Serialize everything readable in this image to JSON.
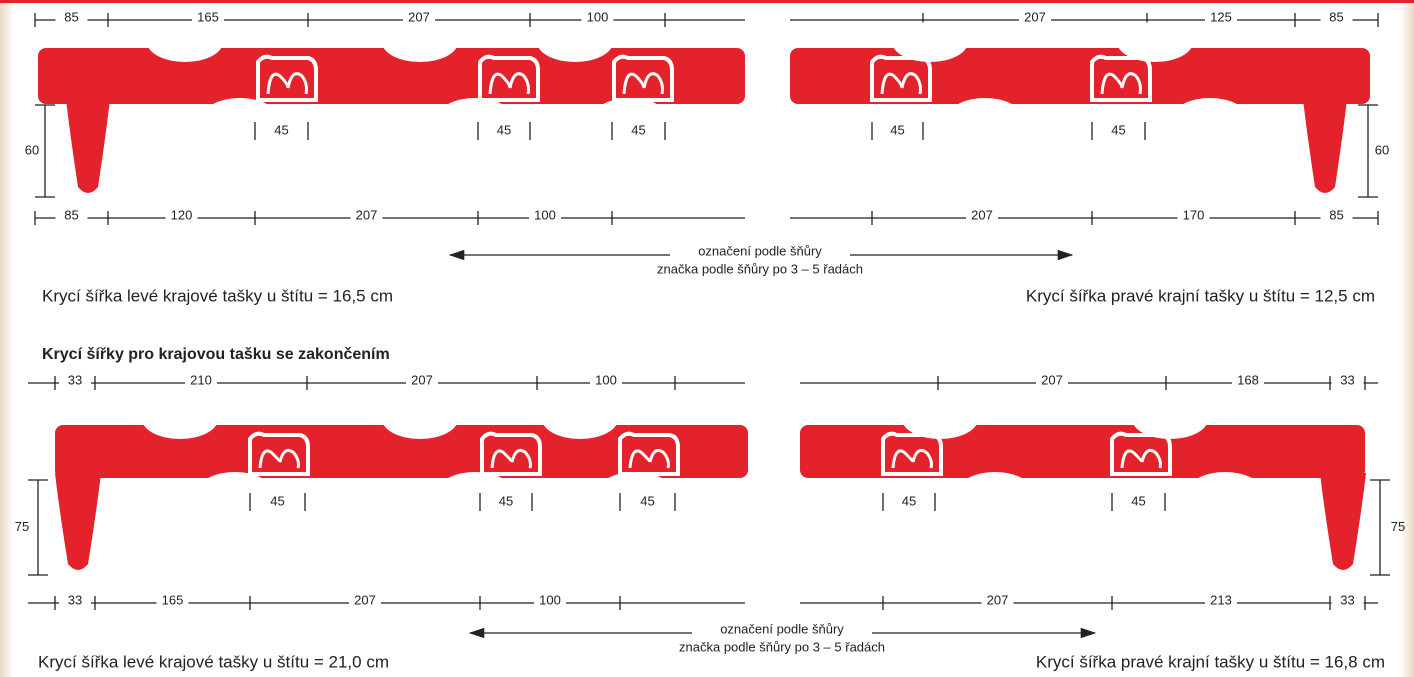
{
  "standard_edge": {
    "top_left": [
      "85",
      "165",
      "207",
      "100"
    ],
    "top_right": [
      "207",
      "125",
      "85"
    ],
    "marks_left": [
      "45",
      "45",
      "45"
    ],
    "marks_right": [
      "45",
      "45"
    ],
    "height_left": "60",
    "height_right": "60",
    "bottom_left": [
      "85",
      "120",
      "207",
      "100"
    ],
    "bottom_right": [
      "207",
      "170",
      "85"
    ],
    "arrow_label": "označení podle šňůry",
    "arrow_sublabel": "značka podle šňůry po 3 – 5 řadách",
    "caption_left": "Krycí šířka levé krajové tašky u štítu = 16,5 cm",
    "caption_right": "Krycí šířka pravé krajní tašky u štítu = 12,5 cm"
  },
  "end_edge": {
    "heading": "Krycí šířky pro krajovou tašku se zakončením",
    "top_left": [
      "33",
      "210",
      "207",
      "100"
    ],
    "top_right": [
      "207",
      "168",
      "33"
    ],
    "marks_left": [
      "45",
      "45",
      "45"
    ],
    "marks_right": [
      "45",
      "45"
    ],
    "height_left": "75",
    "height_right": "75",
    "bottom_left": [
      "33",
      "165",
      "207",
      "100"
    ],
    "bottom_right": [
      "207",
      "213",
      "33"
    ],
    "arrow_label": "označení podle šňůry",
    "arrow_sublabel": "značka podle šňůry po 3 – 5 řadách",
    "caption_left": "Krycí šířka levé krajové tašky u štítu = 21,0 cm",
    "caption_right": "Krycí šířka pravé krajní tašky u štítu = 16,8 cm"
  }
}
